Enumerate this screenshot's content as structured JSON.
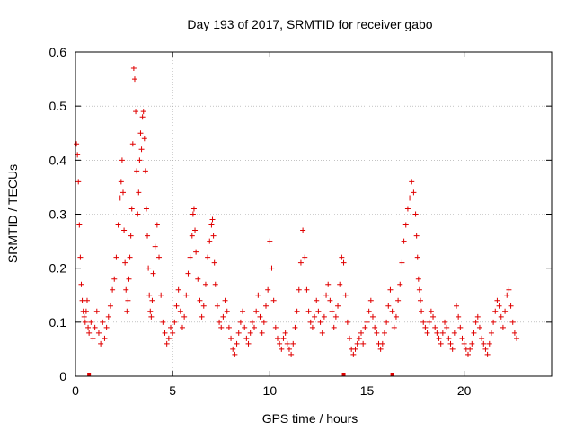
{
  "chart_data": {
    "type": "scatter",
    "title": "Day 193 of 2017, SRMTID for receiver gabo",
    "xlabel": "GPS time / hours",
    "ylabel": "SRMTID / TECUs",
    "xlim": [
      0,
      24.5
    ],
    "ylim": [
      0,
      0.6
    ],
    "xticks": [
      0,
      5,
      10,
      15,
      20
    ],
    "xtick_labels": [
      "0",
      "5",
      "10",
      "15",
      "20"
    ],
    "yticks": [
      0,
      0.1,
      0.2,
      0.3,
      0.4,
      0.5,
      0.6
    ],
    "ytick_labels": [
      "0",
      "0.1",
      "0.2",
      "0.3",
      "0.4",
      "0.5",
      "0.6"
    ],
    "grid": true,
    "marker": "+",
    "point_color": "#e00000",
    "series": [
      {
        "name": "SRMTID",
        "x": [
          0.05,
          0.1,
          0.15,
          0.2,
          0.25,
          0.3,
          0.35,
          0.4,
          0.45,
          0.5,
          0.55,
          0.6,
          0.65,
          0.7,
          0.8,
          0.9,
          1.0,
          1.1,
          1.2,
          1.3,
          1.4,
          1.5,
          1.6,
          1.7,
          1.8,
          1.9,
          2.0,
          2.1,
          2.2,
          2.3,
          2.35,
          2.4,
          2.45,
          2.5,
          2.55,
          2.6,
          2.65,
          2.7,
          2.75,
          2.8,
          2.85,
          2.9,
          2.95,
          3.0,
          3.05,
          3.1,
          3.15,
          3.2,
          3.25,
          3.3,
          3.35,
          3.4,
          3.45,
          3.5,
          3.55,
          3.6,
          3.65,
          3.7,
          3.75,
          3.8,
          3.85,
          3.9,
          3.95,
          4.0,
          4.1,
          4.2,
          4.3,
          4.4,
          4.5,
          4.6,
          4.7,
          4.8,
          4.9,
          5.0,
          5.1,
          5.2,
          5.3,
          5.4,
          5.5,
          5.6,
          5.7,
          5.8,
          5.9,
          6.0,
          6.05,
          6.1,
          6.15,
          6.2,
          6.3,
          6.4,
          6.5,
          6.6,
          6.7,
          6.8,
          6.9,
          7.0,
          7.05,
          7.1,
          7.15,
          7.2,
          7.3,
          7.4,
          7.5,
          7.6,
          7.7,
          7.8,
          7.9,
          8.0,
          8.1,
          8.2,
          8.3,
          8.4,
          8.5,
          8.6,
          8.7,
          8.8,
          8.9,
          9.0,
          9.1,
          9.2,
          9.3,
          9.4,
          9.5,
          9.6,
          9.7,
          9.8,
          9.9,
          10.0,
          10.1,
          10.2,
          10.3,
          10.4,
          10.5,
          10.6,
          10.7,
          10.8,
          10.9,
          11.0,
          11.1,
          11.2,
          11.3,
          11.4,
          11.5,
          11.6,
          11.7,
          11.8,
          11.9,
          12.0,
          12.1,
          12.2,
          12.3,
          12.4,
          12.5,
          12.6,
          12.7,
          12.8,
          12.9,
          13.0,
          13.1,
          13.2,
          13.3,
          13.4,
          13.5,
          13.6,
          13.7,
          13.8,
          13.9,
          14.0,
          14.1,
          14.2,
          14.3,
          14.4,
          14.5,
          14.6,
          14.7,
          14.8,
          14.9,
          15.0,
          15.1,
          15.2,
          15.3,
          15.4,
          15.5,
          15.6,
          15.7,
          15.8,
          15.9,
          16.0,
          16.1,
          16.2,
          16.3,
          16.4,
          16.5,
          16.6,
          16.7,
          16.8,
          16.9,
          17.0,
          17.1,
          17.2,
          17.3,
          17.4,
          17.5,
          17.55,
          17.6,
          17.65,
          17.7,
          17.75,
          17.8,
          17.9,
          18.0,
          18.1,
          18.2,
          18.3,
          18.4,
          18.5,
          18.6,
          18.7,
          18.8,
          18.9,
          19.0,
          19.1,
          19.2,
          19.3,
          19.4,
          19.5,
          19.6,
          19.7,
          19.8,
          19.9,
          20.0,
          20.1,
          20.2,
          20.3,
          20.4,
          20.5,
          20.6,
          20.7,
          20.8,
          20.9,
          21.0,
          21.1,
          21.2,
          21.3,
          21.4,
          21.5,
          21.6,
          21.7,
          21.8,
          21.9,
          22.0,
          22.1,
          22.2,
          22.3,
          22.4,
          22.5,
          22.6,
          22.7
        ],
        "y": [
          0.43,
          0.41,
          0.36,
          0.28,
          0.22,
          0.17,
          0.14,
          0.12,
          0.11,
          0.1,
          0.12,
          0.14,
          0.09,
          0.08,
          0.1,
          0.07,
          0.09,
          0.12,
          0.08,
          0.06,
          0.1,
          0.07,
          0.09,
          0.11,
          0.13,
          0.16,
          0.18,
          0.22,
          0.28,
          0.33,
          0.36,
          0.4,
          0.34,
          0.27,
          0.21,
          0.16,
          0.12,
          0.14,
          0.18,
          0.22,
          0.26,
          0.31,
          0.43,
          0.57,
          0.55,
          0.49,
          0.38,
          0.3,
          0.34,
          0.4,
          0.45,
          0.42,
          0.48,
          0.49,
          0.44,
          0.38,
          0.31,
          0.26,
          0.2,
          0.15,
          0.12,
          0.11,
          0.14,
          0.19,
          0.24,
          0.28,
          0.22,
          0.15,
          0.1,
          0.08,
          0.06,
          0.07,
          0.09,
          0.08,
          0.1,
          0.13,
          0.16,
          0.12,
          0.09,
          0.11,
          0.15,
          0.19,
          0.22,
          0.26,
          0.3,
          0.31,
          0.27,
          0.23,
          0.18,
          0.14,
          0.11,
          0.13,
          0.17,
          0.22,
          0.25,
          0.28,
          0.29,
          0.26,
          0.21,
          0.17,
          0.13,
          0.1,
          0.09,
          0.11,
          0.14,
          0.12,
          0.09,
          0.07,
          0.05,
          0.04,
          0.06,
          0.08,
          0.1,
          0.12,
          0.09,
          0.07,
          0.06,
          0.08,
          0.1,
          0.09,
          0.12,
          0.15,
          0.11,
          0.08,
          0.1,
          0.13,
          0.16,
          0.25,
          0.2,
          0.14,
          0.09,
          0.07,
          0.06,
          0.05,
          0.07,
          0.08,
          0.06,
          0.05,
          0.04,
          0.06,
          0.09,
          0.12,
          0.16,
          0.21,
          0.27,
          0.22,
          0.16,
          0.12,
          0.1,
          0.09,
          0.11,
          0.14,
          0.12,
          0.1,
          0.08,
          0.11,
          0.15,
          0.17,
          0.14,
          0.12,
          0.09,
          0.11,
          0.13,
          0.17,
          0.22,
          0.21,
          0.15,
          0.1,
          0.07,
          0.05,
          0.04,
          0.05,
          0.06,
          0.07,
          0.08,
          0.06,
          0.09,
          0.1,
          0.12,
          0.14,
          0.11,
          0.09,
          0.08,
          0.06,
          0.05,
          0.06,
          0.08,
          0.1,
          0.13,
          0.16,
          0.12,
          0.09,
          0.11,
          0.14,
          0.17,
          0.21,
          0.25,
          0.28,
          0.31,
          0.33,
          0.36,
          0.34,
          0.3,
          0.26,
          0.22,
          0.18,
          0.16,
          0.14,
          0.12,
          0.1,
          0.09,
          0.08,
          0.1,
          0.12,
          0.11,
          0.09,
          0.08,
          0.07,
          0.06,
          0.08,
          0.1,
          0.09,
          0.07,
          0.06,
          0.05,
          0.08,
          0.13,
          0.11,
          0.09,
          0.07,
          0.06,
          0.05,
          0.04,
          0.05,
          0.06,
          0.08,
          0.1,
          0.11,
          0.09,
          0.07,
          0.06,
          0.05,
          0.04,
          0.06,
          0.08,
          0.1,
          0.12,
          0.14,
          0.13,
          0.11,
          0.09,
          0.12,
          0.15,
          0.16,
          0.13,
          0.1,
          0.08,
          0.07
        ]
      }
    ],
    "gap_markers_x": [
      0.7,
      13.8,
      16.3
    ]
  }
}
